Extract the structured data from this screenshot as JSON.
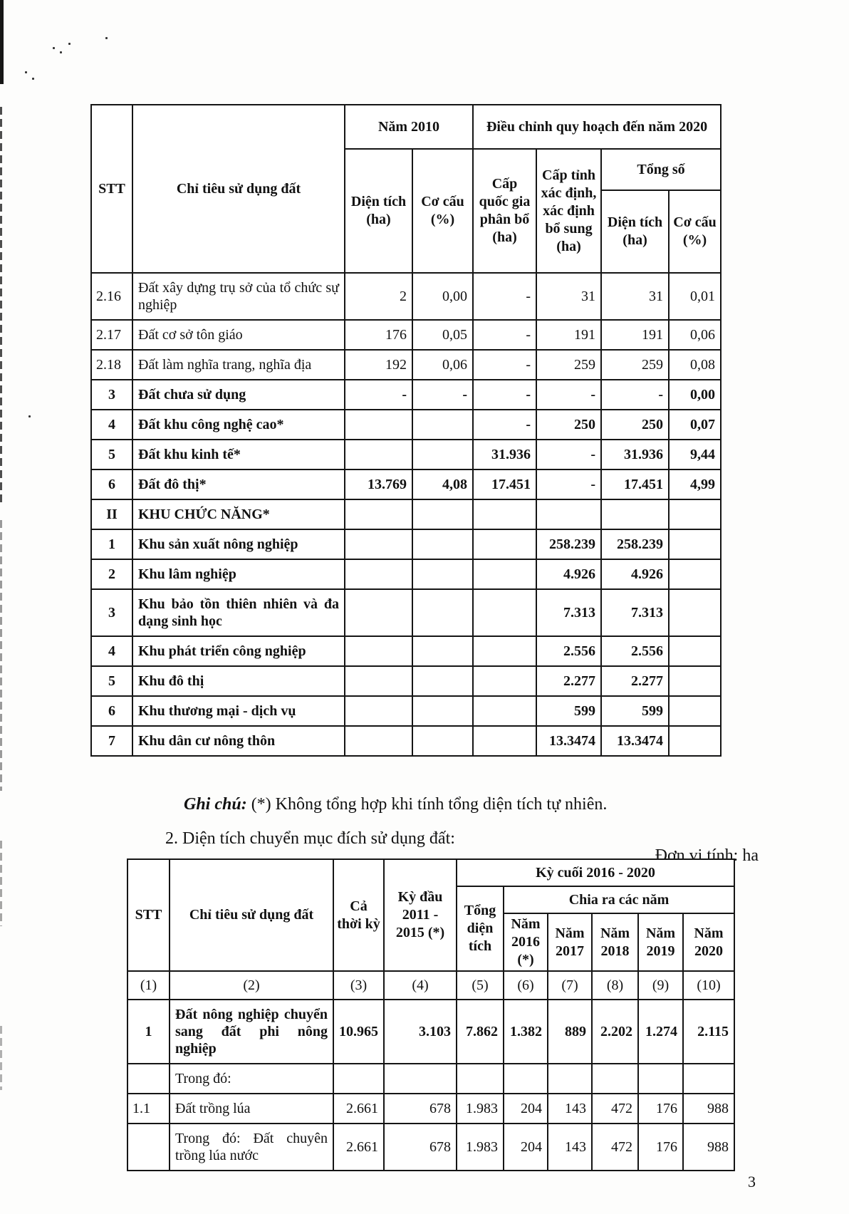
{
  "note": {
    "label": "Ghi chú:",
    "text": " (*) Không tổng hợp khi tính tổng diện tích tự nhiên."
  },
  "section2": {
    "heading": "2. Diện tích chuyển mục đích sử dụng đất:",
    "unit": "Đơn vị tính: ha"
  },
  "page": {
    "number": "3"
  },
  "table1": {
    "header": {
      "stt": "STT",
      "indicator": "Chỉ tiêu sử dụng đất",
      "nam2010": "Năm 2010",
      "dieu_chinh": "Điều chỉnh quy hoạch đến năm 2020",
      "dien_tich": "Diện tích (ha)",
      "co_cau": "Cơ cấu (%)",
      "cap_quoc_gia": "Cấp quốc gia phân bổ (ha)",
      "cap_tinh": "Cấp tỉnh xác định, xác định bổ sung (ha)",
      "tong_so": "Tổng số"
    },
    "rows": [
      {
        "stt": "2.16",
        "label": "Đất xây dựng trụ sở của tổ chức sự nghiệp",
        "values": [
          "2",
          "0,00",
          "-",
          "31",
          "31",
          "0,01"
        ],
        "bold": false
      },
      {
        "stt": "2.17",
        "label": "Đất cơ sở tôn giáo",
        "values": [
          "176",
          "0,05",
          "-",
          "191",
          "191",
          "0,06"
        ],
        "bold": false
      },
      {
        "stt": "2.18",
        "label": "Đất làm nghĩa trang, nghĩa địa",
        "values": [
          "192",
          "0,06",
          "-",
          "259",
          "259",
          "0,08"
        ],
        "bold": false
      },
      {
        "stt": "3",
        "label": "Đất chưa sử dụng",
        "values": [
          "-",
          "-",
          "-",
          "-",
          "-",
          "0,00"
        ],
        "bold": true
      },
      {
        "stt": "4",
        "label": "Đất khu công nghệ cao*",
        "values": [
          "",
          "",
          "-",
          "250",
          "250",
          "0,07"
        ],
        "bold": true
      },
      {
        "stt": "5",
        "label": "Đất khu kinh tế*",
        "values": [
          "",
          "",
          "31.936",
          "-",
          "31.936",
          "9,44"
        ],
        "bold": true
      },
      {
        "stt": "6",
        "label": "Đất đô thị*",
        "values": [
          "13.769",
          "4,08",
          "17.451",
          "-",
          "17.451",
          "4,99"
        ],
        "bold": true
      },
      {
        "stt": "II",
        "label": "KHU CHỨC NĂNG*",
        "values": [
          "",
          "",
          "",
          "",
          "",
          ""
        ],
        "bold": true
      },
      {
        "stt": "1",
        "label": "Khu sản xuất nông nghiệp",
        "values": [
          "",
          "",
          "",
          "258.239",
          "258.239",
          ""
        ],
        "bold": true
      },
      {
        "stt": "2",
        "label": "Khu lâm nghiệp",
        "values": [
          "",
          "",
          "",
          "4.926",
          "4.926",
          ""
        ],
        "bold": true
      },
      {
        "stt": "3",
        "label": "Khu bảo tồn thiên nhiên và đa dạng sinh học",
        "values": [
          "",
          "",
          "",
          "7.313",
          "7.313",
          ""
        ],
        "bold": true
      },
      {
        "stt": "4",
        "label": "Khu phát triển công nghiệp",
        "values": [
          "",
          "",
          "",
          "2.556",
          "2.556",
          ""
        ],
        "bold": true
      },
      {
        "stt": "5",
        "label": "Khu đô thị",
        "values": [
          "",
          "",
          "",
          "2.277",
          "2.277",
          ""
        ],
        "bold": true
      },
      {
        "stt": "6",
        "label": "Khu thương mại - dịch vụ",
        "values": [
          "",
          "",
          "",
          "599",
          "599",
          ""
        ],
        "bold": true
      },
      {
        "stt": "7",
        "label": "Khu dân cư nông thôn",
        "values": [
          "",
          "",
          "",
          "13.3474",
          "13.3474",
          ""
        ],
        "bold": true
      }
    ]
  },
  "table2": {
    "header": {
      "stt": "STT",
      "indicator": "Chỉ tiêu sử dụng đất",
      "ca_thoi_ky": "Cả thời kỳ",
      "ky_dau": "Kỳ đầu 2011 - 2015 (*)",
      "ky_cuoi": "Kỳ cuối 2016 - 2020",
      "tong_dien_tich": "Tổng diện tích",
      "chia_ra": "Chia ra các năm",
      "years": [
        "Năm 2016 (*)",
        "Năm 2017",
        "Năm 2018",
        "Năm 2019",
        "Năm 2020"
      ],
      "col_numbers": [
        "(1)",
        "(2)",
        "(3)",
        "(4)",
        "(5)",
        "(6)",
        "(7)",
        "(8)",
        "(9)",
        "(10)"
      ]
    },
    "rows": [
      {
        "stt": "1",
        "label": "Đất nông nghiệp chuyển sang đất phi nông nghiệp",
        "values": [
          "10.965",
          "3.103",
          "7.862",
          "1.382",
          "889",
          "2.202",
          "1.274",
          "2.115"
        ],
        "bold": true
      },
      {
        "stt": "",
        "label": "Trong đó:",
        "values": [
          "",
          "",
          "",
          "",
          "",
          "",
          "",
          ""
        ],
        "bold": false
      },
      {
        "stt": "1.1",
        "label": "Đất trồng lúa",
        "values": [
          "2.661",
          "678",
          "1.983",
          "204",
          "143",
          "472",
          "176",
          "988"
        ],
        "bold": false
      },
      {
        "stt": "",
        "label": "Trong đó: Đất chuyên trồng lúa nước",
        "values": [
          "2.661",
          "678",
          "1.983",
          "204",
          "143",
          "472",
          "176",
          "988"
        ],
        "bold": false
      }
    ]
  }
}
